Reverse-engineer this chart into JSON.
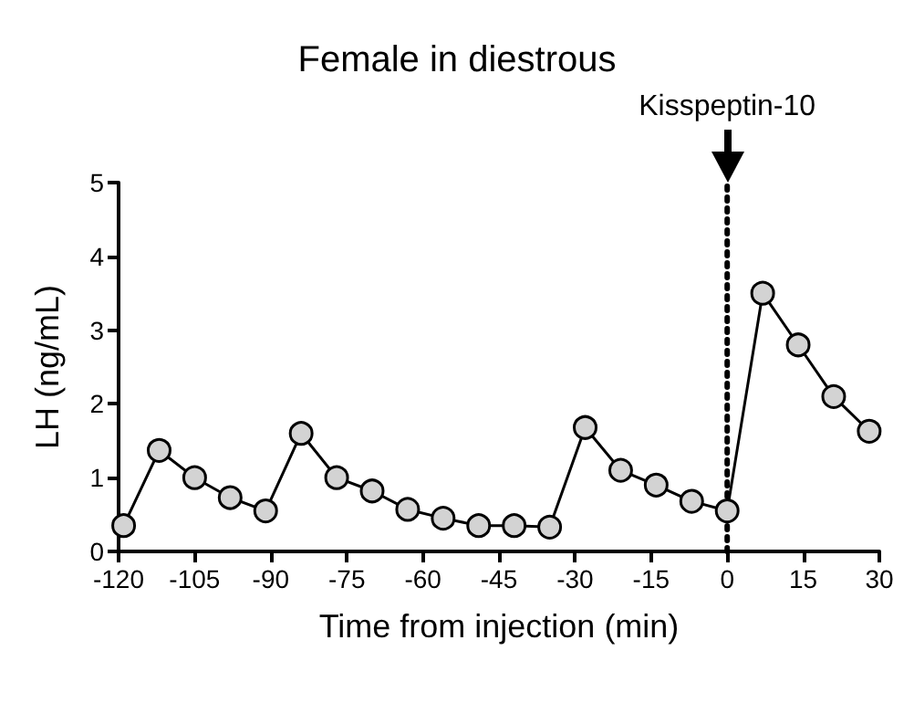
{
  "chart_data": {
    "type": "line",
    "title": "Female in diestrous",
    "xlabel": "Time from injection (min)",
    "ylabel": "LH (ng/mL)",
    "x": [
      -119,
      -112,
      -105,
      -98,
      -91,
      -84,
      -77,
      -70,
      -63,
      -56,
      -49,
      -42,
      -35,
      -28,
      -21,
      -14,
      -7,
      0,
      7,
      14,
      21,
      28
    ],
    "series": [
      {
        "color": "#000000",
        "values": [
          0.35,
          1.37,
          1.0,
          0.73,
          0.55,
          1.6,
          1.0,
          0.82,
          0.57,
          0.45,
          0.35,
          0.35,
          0.33,
          1.68,
          1.1,
          0.9,
          0.68,
          0.55,
          3.5,
          2.8,
          2.1,
          1.63
        ]
      }
    ],
    "xlim": [
      -120,
      30
    ],
    "xticks": [
      -120,
      -105,
      -90,
      -75,
      -60,
      -45,
      -30,
      -15,
      0,
      15,
      30
    ],
    "ylim": [
      0,
      5
    ],
    "yticks": [
      0,
      1,
      2,
      3,
      4,
      5
    ],
    "ref_lines": [
      {
        "axis": "x",
        "value": 0,
        "label": "Kisspeptin-10",
        "line_style": "dotted",
        "color": "#000000"
      }
    ],
    "marker": "circle",
    "line_style": "solid",
    "grid": false
  }
}
